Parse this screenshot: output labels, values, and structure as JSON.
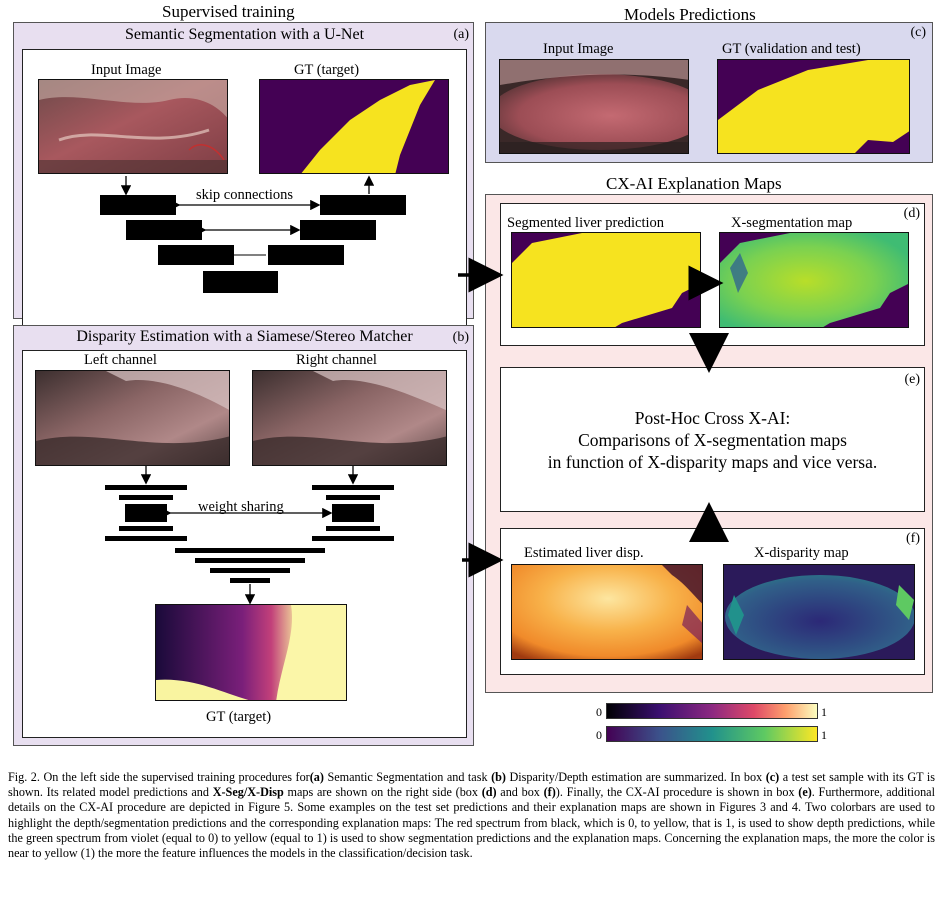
{
  "supervised": {
    "heading": "Supervised training",
    "seg": {
      "title": "Semantic Segmentation with a U-Net",
      "tag": "(a)",
      "input_label": "Input Image",
      "gt_label": "GT (target)",
      "skip_label": "skip connections"
    },
    "disp": {
      "title": "Disparity Estimation with a Siamese/Stereo Matcher",
      "tag": "(b)",
      "left_label": "Left channel",
      "right_label": "Right channel",
      "weight_label": "weight sharing",
      "gt_label": "GT (target)"
    }
  },
  "predictions": {
    "heading": "Models Predictions",
    "tag": "(c)",
    "input_label": "Input Image",
    "gt_label": "GT (validation and test)"
  },
  "cxai": {
    "heading": "CX-AI Explanation Maps",
    "d": {
      "tag": "(d)",
      "pred_label": "Segmented liver prediction",
      "map_label": "X-segmentation map"
    },
    "e": {
      "tag": "(e)",
      "line1": "Post-Hoc Cross X-AI:",
      "line2": "Comparisons of X-segmentation maps",
      "line3": "in function of X-disparity maps and vice versa."
    },
    "f": {
      "tag": "(f)",
      "pred_label": "Estimated liver disp.",
      "map_label": "X-disparity map"
    }
  },
  "colorbars": [
    {
      "min": "0",
      "max": "1",
      "colormap": "magma"
    },
    {
      "min": "0",
      "max": "1",
      "colormap": "viridis"
    }
  ],
  "colors": {
    "lavender": "#e8dff0",
    "periwinkle": "#d9d9ee",
    "pink": "#fbe7e7",
    "yellow": "#f6e31f",
    "purple": "#440154"
  },
  "caption": {
    "p1": "Fig. 2.  On the left side the supervised training procedures for",
    "b1": "(a)",
    "p2": " Semantic Segmentation and task ",
    "b2": "(b)",
    "p3": " Disparity/Depth estimation are summarized. In box ",
    "b3": "(c)",
    "p4": " a test set sample with its GT is shown. Its related model predictions and ",
    "b4": "X-Seg/X-Disp",
    "p5": " maps are shown on the right side (box ",
    "b5": "(d)",
    "p6": " and box ",
    "b6": "(f)",
    "p7": "). Finally, the CX-AI procedure is shown in box ",
    "b7": "(e)",
    "p8": ". Furthermore, additional details on the CX-AI procedure are depicted in Figure 5. Some examples on the test set predictions and their explanation maps are shown in Figures 3 and 4. Two colorbars are used to highlight the depth/segmentation predictions and the corresponding explanation maps: The red spectrum from black, which is 0, to yellow, that is 1, is used to show depth predictions, while the green spectrum from violet (equal to 0) to yellow (equal to 1) is used to show segmentation predictions and the explanation maps. Concerning the explanation maps, the more the color is near to yellow (1) the more the feature influences the models in the classification/decision task."
  }
}
